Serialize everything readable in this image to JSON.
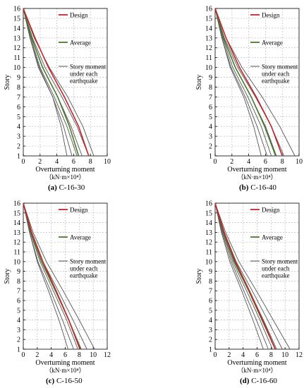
{
  "chart_data": [
    {
      "type": "line",
      "caption_tag": "(a)",
      "caption_name": "C-16-30",
      "xlabel": "Overturning moment",
      "xunit": "（kN·m×10⁴）",
      "ylabel": "Story",
      "xlim": [
        0,
        10
      ],
      "ylim": [
        1,
        16
      ],
      "xticks": [
        0,
        2,
        4,
        6,
        8,
        10
      ],
      "yticks": [
        1,
        2,
        3,
        4,
        5,
        6,
        7,
        8,
        9,
        10,
        11,
        12,
        13,
        14,
        15,
        16
      ],
      "grid": true,
      "legend": [
        {
          "label": "Design",
          "color": "#c0262d"
        },
        {
          "label": "Average",
          "color": "#4a7a2c"
        },
        {
          "label": "Story moment\nunder each\nearthquake",
          "color": "#555555"
        }
      ],
      "series": [
        {
          "role": "earthquake",
          "points": [
            [
              0,
              16
            ],
            [
              0.8,
              13
            ],
            [
              1.8,
              10
            ],
            [
              3.5,
              7
            ],
            [
              4.5,
              4
            ],
            [
              5.2,
              1
            ]
          ]
        },
        {
          "role": "earthquake",
          "points": [
            [
              0,
              16
            ],
            [
              0.8,
              13
            ],
            [
              1.9,
              10
            ],
            [
              3.5,
              7
            ],
            [
              4.8,
              4
            ],
            [
              5.8,
              1
            ]
          ]
        },
        {
          "role": "earthquake",
          "points": [
            [
              0,
              16
            ],
            [
              0.9,
              13
            ],
            [
              2.0,
              10
            ],
            [
              3.7,
              7
            ],
            [
              5.2,
              4
            ],
            [
              6.4,
              1
            ]
          ]
        },
        {
          "role": "earthquake",
          "points": [
            [
              0,
              16
            ],
            [
              1.0,
              13
            ],
            [
              2.3,
              10
            ],
            [
              4.1,
              7
            ],
            [
              5.7,
              4
            ],
            [
              7.0,
              1
            ]
          ]
        },
        {
          "role": "earthquake",
          "points": [
            [
              0,
              16
            ],
            [
              1.1,
              13
            ],
            [
              2.6,
              10
            ],
            [
              4.6,
              7
            ],
            [
              6.4,
              4
            ],
            [
              7.8,
              1
            ]
          ]
        },
        {
          "role": "earthquake",
          "points": [
            [
              0,
              16
            ],
            [
              1.3,
              13
            ],
            [
              3.1,
              10
            ],
            [
              5.3,
              7
            ],
            [
              7.1,
              4
            ],
            [
              8.4,
              1
            ]
          ]
        },
        {
          "role": "average",
          "points": [
            [
              0,
              16
            ],
            [
              1.0,
              13
            ],
            [
              2.3,
              10
            ],
            [
              4.1,
              7
            ],
            [
              5.5,
              4
            ],
            [
              6.6,
              1
            ]
          ]
        },
        {
          "role": "design",
          "points": [
            [
              0,
              16
            ],
            [
              1.4,
              13
            ],
            [
              3.0,
              10
            ],
            [
              4.9,
              7
            ],
            [
              6.6,
              4
            ],
            [
              7.8,
              1
            ]
          ]
        }
      ]
    },
    {
      "type": "line",
      "caption_tag": "(b)",
      "caption_name": "C-16-40",
      "xlabel": "Overturning moment",
      "xunit": "（kN·m×10⁴）",
      "ylabel": "Story",
      "xlim": [
        0,
        10
      ],
      "ylim": [
        1,
        16
      ],
      "xticks": [
        0,
        2,
        4,
        6,
        8,
        10
      ],
      "yticks": [
        1,
        2,
        3,
        4,
        5,
        6,
        7,
        8,
        9,
        10,
        11,
        12,
        13,
        14,
        15,
        16
      ],
      "grid": true,
      "legend": [
        {
          "label": "Design",
          "color": "#c0262d"
        },
        {
          "label": "Average",
          "color": "#4a7a2c"
        },
        {
          "label": "Story moment\nunder each\nearthquake",
          "color": "#555555"
        }
      ],
      "series": [
        {
          "role": "earthquake",
          "points": [
            [
              0,
              16
            ],
            [
              0.8,
              13
            ],
            [
              1.8,
              10
            ],
            [
              3.4,
              7
            ],
            [
              4.6,
              4
            ],
            [
              5.5,
              1
            ]
          ]
        },
        {
          "role": "earthquake",
          "points": [
            [
              0,
              16
            ],
            [
              0.8,
              13
            ],
            [
              1.9,
              10
            ],
            [
              3.6,
              7
            ],
            [
              5.0,
              4
            ],
            [
              6.2,
              1
            ]
          ]
        },
        {
          "role": "earthquake",
          "points": [
            [
              0,
              16
            ],
            [
              0.9,
              13
            ],
            [
              2.1,
              10
            ],
            [
              3.9,
              7
            ],
            [
              5.5,
              4
            ],
            [
              6.7,
              1
            ]
          ]
        },
        {
          "role": "earthquake",
          "points": [
            [
              0,
              16
            ],
            [
              1.0,
              13
            ],
            [
              2.4,
              10
            ],
            [
              4.3,
              7
            ],
            [
              6.0,
              4
            ],
            [
              7.3,
              1
            ]
          ]
        },
        {
          "role": "earthquake",
          "points": [
            [
              0,
              16
            ],
            [
              1.1,
              13
            ],
            [
              2.7,
              10
            ],
            [
              4.8,
              7
            ],
            [
              6.7,
              4
            ],
            [
              8.2,
              1
            ]
          ]
        },
        {
          "role": "earthquake",
          "points": [
            [
              0,
              16
            ],
            [
              1.3,
              13
            ],
            [
              3.2,
              10
            ],
            [
              5.6,
              7
            ],
            [
              7.7,
              4
            ],
            [
              9.5,
              1
            ]
          ]
        },
        {
          "role": "average",
          "points": [
            [
              0,
              16
            ],
            [
              1.0,
              13
            ],
            [
              2.4,
              10
            ],
            [
              4.3,
              7
            ],
            [
              5.9,
              4
            ],
            [
              7.2,
              1
            ]
          ]
        },
        {
          "role": "design",
          "points": [
            [
              0,
              16
            ],
            [
              1.3,
              13
            ],
            [
              2.9,
              10
            ],
            [
              4.9,
              7
            ],
            [
              6.7,
              4
            ],
            [
              8.0,
              1
            ]
          ]
        }
      ]
    },
    {
      "type": "line",
      "caption_tag": "(c)",
      "caption_name": "C-16-50",
      "xlabel": "Overturning moment",
      "xunit": "（kN·m×10⁴）",
      "ylabel": "Story",
      "xlim": [
        0,
        12
      ],
      "ylim": [
        1,
        16
      ],
      "xticks": [
        0,
        2,
        4,
        6,
        8,
        10,
        12
      ],
      "yticks": [
        1,
        2,
        3,
        4,
        5,
        6,
        7,
        8,
        9,
        10,
        11,
        12,
        13,
        14,
        15,
        16
      ],
      "grid": true,
      "legend": [
        {
          "label": "Design",
          "color": "#c0262d"
        },
        {
          "label": "Average",
          "color": "#4a7a2c"
        },
        {
          "label": "Story moment\nunder each\nearthquake",
          "color": "#555555"
        }
      ],
      "series": [
        {
          "role": "earthquake",
          "points": [
            [
              0,
              16
            ],
            [
              0.9,
              13
            ],
            [
              2.0,
              10
            ],
            [
              3.6,
              7
            ],
            [
              5.1,
              4
            ],
            [
              6.4,
              1
            ]
          ]
        },
        {
          "role": "earthquake",
          "points": [
            [
              0,
              16
            ],
            [
              0.9,
              13
            ],
            [
              2.1,
              10
            ],
            [
              3.9,
              7
            ],
            [
              5.6,
              4
            ],
            [
              7.2,
              1
            ]
          ]
        },
        {
          "role": "earthquake",
          "points": [
            [
              0,
              16
            ],
            [
              1.0,
              13
            ],
            [
              2.4,
              10
            ],
            [
              4.3,
              7
            ],
            [
              6.2,
              4
            ],
            [
              7.8,
              1
            ]
          ]
        },
        {
          "role": "earthquake",
          "points": [
            [
              0,
              16
            ],
            [
              1.1,
              13
            ],
            [
              2.6,
              10
            ],
            [
              4.6,
              7
            ],
            [
              6.5,
              4
            ],
            [
              8.3,
              1
            ]
          ]
        },
        {
          "role": "earthquake",
          "points": [
            [
              0,
              16
            ],
            [
              1.2,
              13
            ],
            [
              2.8,
              10
            ],
            [
              5.0,
              7
            ],
            [
              7.1,
              4
            ],
            [
              9.1,
              1
            ]
          ]
        },
        {
          "role": "earthquake",
          "points": [
            [
              0,
              16
            ],
            [
              1.4,
              13
            ],
            [
              3.3,
              10
            ],
            [
              5.7,
              7
            ],
            [
              8.0,
              4
            ],
            [
              10.2,
              1
            ]
          ]
        },
        {
          "role": "average",
          "points": [
            [
              0,
              16
            ],
            [
              1.1,
              13
            ],
            [
              2.6,
              10
            ],
            [
              4.6,
              7
            ],
            [
              6.5,
              4
            ],
            [
              8.2,
              1
            ]
          ]
        },
        {
          "role": "design",
          "points": [
            [
              0,
              16
            ],
            [
              1.2,
              13
            ],
            [
              2.8,
              10
            ],
            [
              4.7,
              7
            ],
            [
              6.5,
              4
            ],
            [
              8.1,
              1
            ]
          ]
        }
      ]
    },
    {
      "type": "line",
      "caption_tag": "(d)",
      "caption_name": "C-16-60",
      "xlabel": "Overturning moment",
      "xunit": "（kN·m×10⁴）",
      "ylabel": "Story",
      "xlim": [
        0,
        12
      ],
      "ylim": [
        1,
        16
      ],
      "xticks": [
        0,
        2,
        4,
        6,
        8,
        10,
        12
      ],
      "yticks": [
        1,
        2,
        3,
        4,
        5,
        6,
        7,
        8,
        9,
        10,
        11,
        12,
        13,
        14,
        15,
        16
      ],
      "grid": true,
      "legend": [
        {
          "label": "Design",
          "color": "#c0262d"
        },
        {
          "label": "Average",
          "color": "#4a7a2c"
        },
        {
          "label": "Story moment\nunder each\nearthquake",
          "color": "#555555"
        }
      ],
      "series": [
        {
          "role": "earthquake",
          "points": [
            [
              0,
              16
            ],
            [
              0.9,
              13
            ],
            [
              2.1,
              10
            ],
            [
              3.8,
              7
            ],
            [
              5.4,
              4
            ],
            [
              6.9,
              1
            ]
          ]
        },
        {
          "role": "earthquake",
          "points": [
            [
              0,
              16
            ],
            [
              1.0,
              13
            ],
            [
              2.3,
              10
            ],
            [
              4.1,
              7
            ],
            [
              5.9,
              4
            ],
            [
              7.6,
              1
            ]
          ]
        },
        {
          "role": "earthquake",
          "points": [
            [
              0,
              16
            ],
            [
              1.1,
              13
            ],
            [
              2.5,
              10
            ],
            [
              4.5,
              7
            ],
            [
              6.4,
              4
            ],
            [
              8.2,
              1
            ]
          ]
        },
        {
          "role": "earthquake",
          "points": [
            [
              0,
              16
            ],
            [
              1.2,
              13
            ],
            [
              2.8,
              10
            ],
            [
              4.9,
              7
            ],
            [
              6.9,
              4
            ],
            [
              8.8,
              1
            ]
          ]
        },
        {
          "role": "earthquake",
          "points": [
            [
              0,
              16
            ],
            [
              1.3,
              13
            ],
            [
              3.0,
              10
            ],
            [
              5.3,
              7
            ],
            [
              7.5,
              4
            ],
            [
              9.6,
              1
            ]
          ]
        },
        {
          "role": "earthquake",
          "points": [
            [
              0,
              16
            ],
            [
              1.5,
              13
            ],
            [
              3.4,
              10
            ],
            [
              5.9,
              7
            ],
            [
              8.3,
              4
            ],
            [
              10.7,
              1
            ]
          ]
        },
        {
          "role": "average",
          "points": [
            [
              0,
              16
            ],
            [
              1.2,
              13
            ],
            [
              2.7,
              10
            ],
            [
              4.8,
              7
            ],
            [
              6.7,
              4
            ],
            [
              8.6,
              1
            ]
          ]
        },
        {
          "role": "design",
          "points": [
            [
              0,
              16
            ],
            [
              1.3,
              13
            ],
            [
              2.9,
              10
            ],
            [
              4.9,
              7
            ],
            [
              6.8,
              4
            ],
            [
              8.6,
              1
            ]
          ]
        }
      ]
    }
  ]
}
